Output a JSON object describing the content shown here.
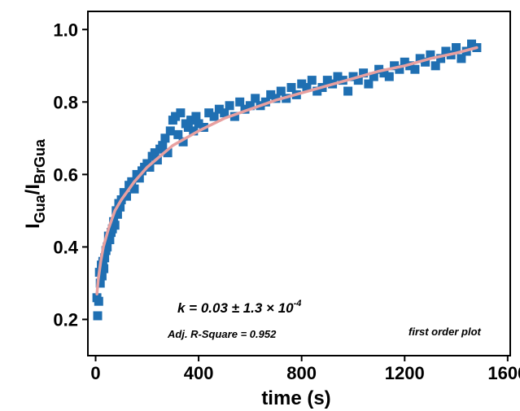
{
  "chart_data": {
    "type": "scatter",
    "xlabel": "time (s)",
    "ylabel": {
      "main": "I",
      "sub1": "Gua",
      "sep": "/I",
      "sub2": "BrGua"
    },
    "xlim": [
      -30,
      1610
    ],
    "ylim": [
      0.1,
      1.05
    ],
    "xticks": [
      0,
      400,
      800,
      1200,
      1600
    ],
    "yticks": [
      0.2,
      0.4,
      0.6,
      0.8,
      1.0
    ],
    "xtick_labels": [
      "0",
      "400",
      "800",
      "1200",
      "1600"
    ],
    "ytick_labels": [
      "0.2",
      "0.4",
      "0.6",
      "0.8",
      "1.0"
    ],
    "grid": false,
    "colors": {
      "points": "#1f6fb2",
      "fit": "#e8a0a0"
    },
    "annotations": {
      "k": {
        "pre": "k = 0.03 ± 1.3 × 10",
        "exp": "-4"
      },
      "r2": "Adj. R-Square = 0.952",
      "label": "first order plot"
    },
    "series": [
      {
        "kind": "scatter",
        "x": [
          5,
          8,
          12,
          15,
          18,
          22,
          25,
          28,
          32,
          35,
          40,
          45,
          50,
          55,
          60,
          65,
          70,
          75,
          80,
          85,
          90,
          95,
          100,
          110,
          120,
          130,
          140,
          150,
          160,
          170,
          180,
          190,
          200,
          210,
          220,
          230,
          240,
          250,
          260,
          270,
          280,
          290,
          300,
          310,
          320,
          330,
          340,
          350,
          360,
          370,
          380,
          390,
          400,
          420,
          440,
          460,
          480,
          500,
          520,
          540,
          560,
          580,
          600,
          620,
          640,
          660,
          680,
          700,
          720,
          740,
          760,
          780,
          800,
          820,
          840,
          860,
          880,
          900,
          920,
          940,
          960,
          980,
          1000,
          1020,
          1040,
          1060,
          1080,
          1100,
          1120,
          1140,
          1160,
          1180,
          1200,
          1220,
          1240,
          1260,
          1280,
          1300,
          1320,
          1340,
          1360,
          1380,
          1400,
          1420,
          1440,
          1460,
          1480
        ],
        "y": [
          0.26,
          0.21,
          0.25,
          0.33,
          0.3,
          0.35,
          0.32,
          0.36,
          0.34,
          0.37,
          0.39,
          0.4,
          0.43,
          0.42,
          0.44,
          0.45,
          0.47,
          0.46,
          0.5,
          0.49,
          0.52,
          0.51,
          0.53,
          0.55,
          0.54,
          0.57,
          0.58,
          0.56,
          0.6,
          0.59,
          0.61,
          0.62,
          0.63,
          0.62,
          0.65,
          0.66,
          0.64,
          0.67,
          0.68,
          0.7,
          0.66,
          0.72,
          0.75,
          0.76,
          0.71,
          0.77,
          0.69,
          0.74,
          0.73,
          0.75,
          0.72,
          0.76,
          0.74,
          0.73,
          0.77,
          0.76,
          0.78,
          0.77,
          0.79,
          0.76,
          0.8,
          0.78,
          0.79,
          0.81,
          0.79,
          0.8,
          0.82,
          0.81,
          0.83,
          0.81,
          0.84,
          0.82,
          0.85,
          0.84,
          0.86,
          0.83,
          0.84,
          0.86,
          0.85,
          0.87,
          0.86,
          0.83,
          0.87,
          0.86,
          0.88,
          0.85,
          0.87,
          0.89,
          0.88,
          0.87,
          0.9,
          0.89,
          0.91,
          0.9,
          0.89,
          0.92,
          0.91,
          0.93,
          0.9,
          0.92,
          0.94,
          0.93,
          0.95,
          0.92,
          0.94,
          0.96,
          0.95
        ]
      },
      {
        "kind": "line",
        "x": [
          5,
          10,
          20,
          30,
          50,
          75,
          100,
          150,
          200,
          250,
          300,
          400,
          500,
          600,
          700,
          800,
          900,
          1000,
          1100,
          1200,
          1300,
          1400,
          1480
        ],
        "y": [
          0.27,
          0.31,
          0.36,
          0.4,
          0.45,
          0.5,
          0.53,
          0.58,
          0.62,
          0.65,
          0.68,
          0.72,
          0.755,
          0.78,
          0.805,
          0.825,
          0.845,
          0.865,
          0.885,
          0.9,
          0.92,
          0.935,
          0.95
        ]
      }
    ]
  }
}
